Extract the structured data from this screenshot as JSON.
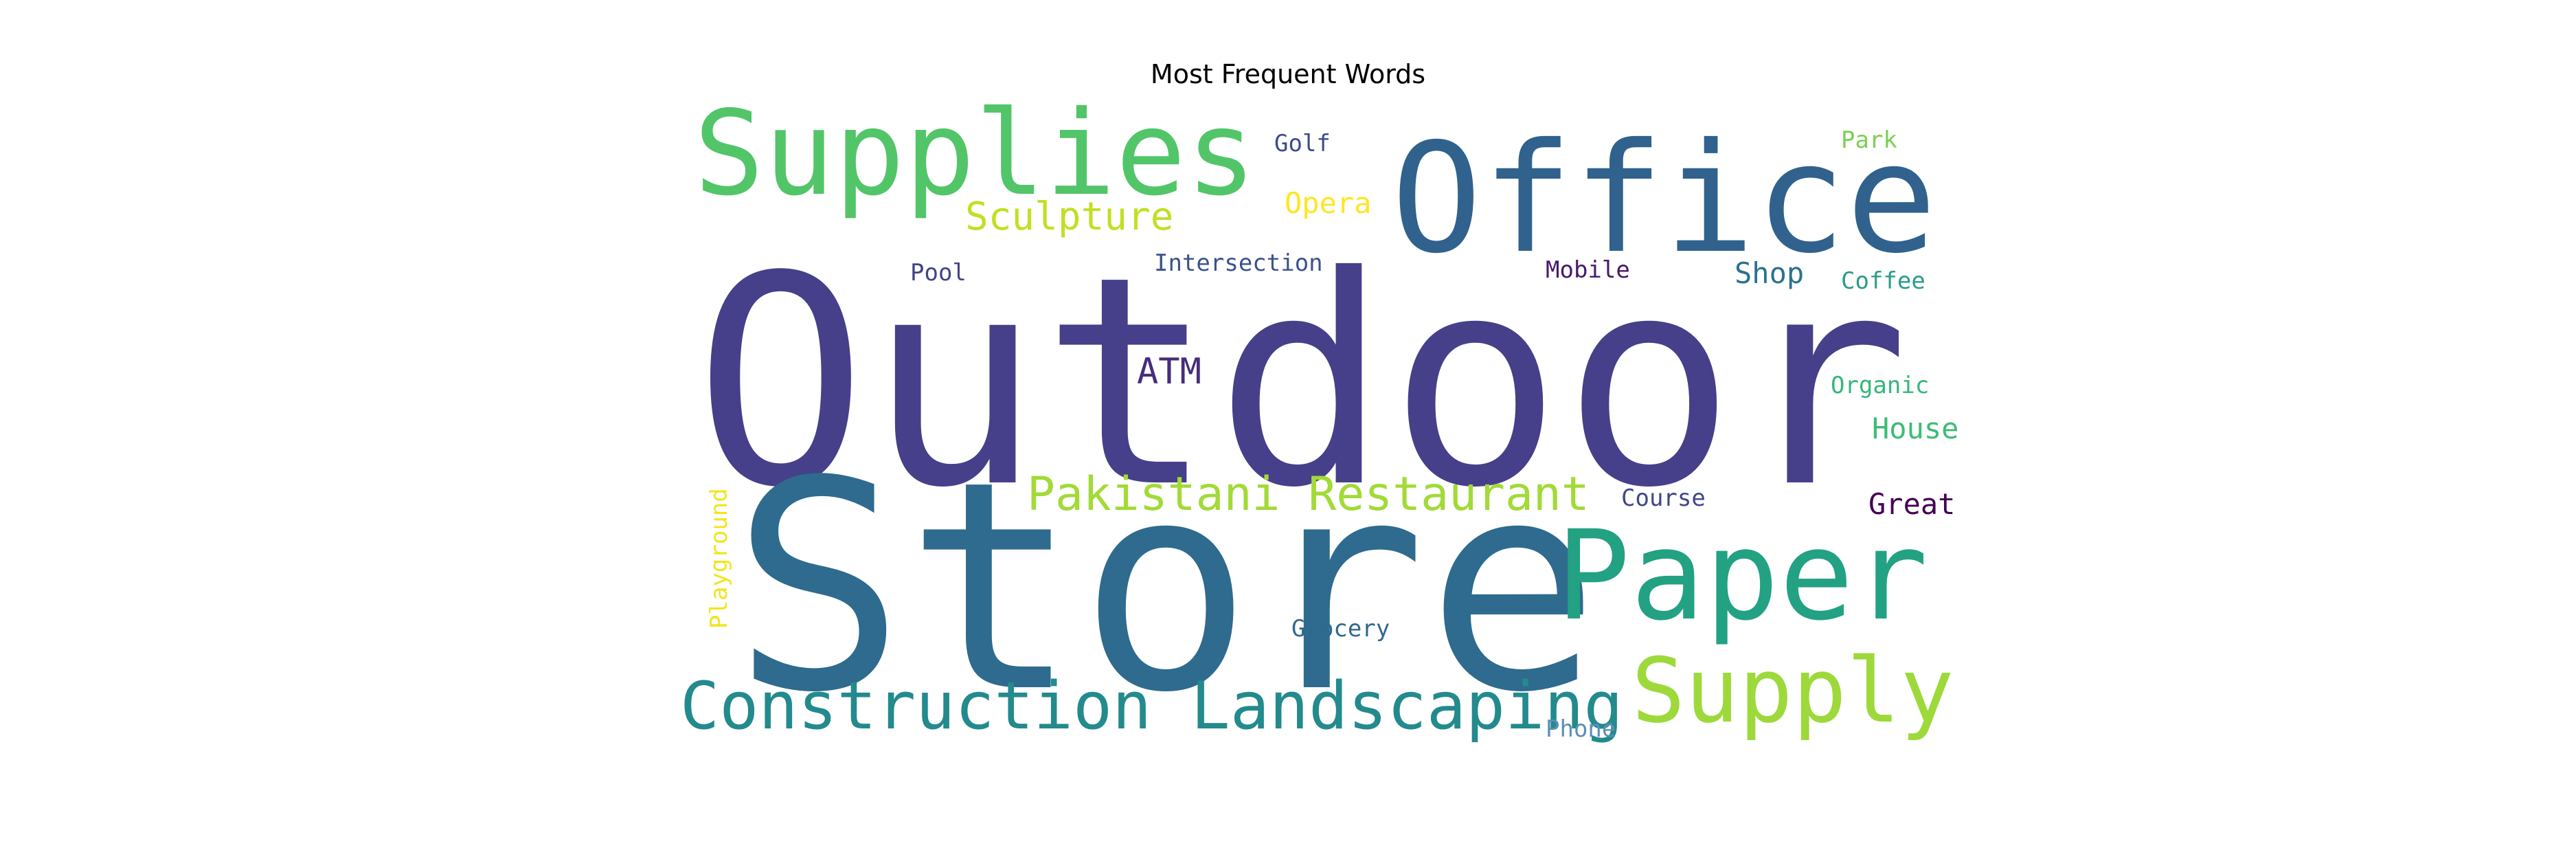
{
  "chart_data": {
    "type": "wordcloud",
    "title": "Most Frequent Words",
    "words": [
      {
        "text": "Outdoor",
        "color": "#46408a"
      },
      {
        "text": "Store",
        "color": "#2e6b8e"
      },
      {
        "text": "Office",
        "color": "#30628d"
      },
      {
        "text": "Supplies",
        "color": "#52c569"
      },
      {
        "text": "Paper",
        "color": "#23a183"
      },
      {
        "text": "Supply",
        "color": "#9dd93b"
      },
      {
        "text": "Construction Landscaping",
        "color": "#238a8d"
      },
      {
        "text": "Pakistani Restaurant",
        "color": "#a2da37"
      },
      {
        "text": "Sculpture",
        "color": "#c2df23"
      },
      {
        "text": "ATM",
        "color": "#472d7b"
      },
      {
        "text": "Golf",
        "color": "#3e4a89"
      },
      {
        "text": "Opera",
        "color": "#fde725"
      },
      {
        "text": "Park",
        "color": "#7ad151"
      },
      {
        "text": "Pool",
        "color": "#414487"
      },
      {
        "text": "Intersection",
        "color": "#3b528b"
      },
      {
        "text": "Mobile",
        "color": "#48186a"
      },
      {
        "text": "Shop",
        "color": "#2c728e"
      },
      {
        "text": "Coffee",
        "color": "#2a9c88"
      },
      {
        "text": "Organic",
        "color": "#35b779"
      },
      {
        "text": "House",
        "color": "#3dbc74"
      },
      {
        "text": "Course",
        "color": "#404688"
      },
      {
        "text": "Great",
        "color": "#440154"
      },
      {
        "text": "Playground",
        "color": "#f1e51d"
      },
      {
        "text": "Grocery",
        "color": "#31688e"
      },
      {
        "text": "Phone",
        "color": "#5b8fb6"
      }
    ]
  }
}
